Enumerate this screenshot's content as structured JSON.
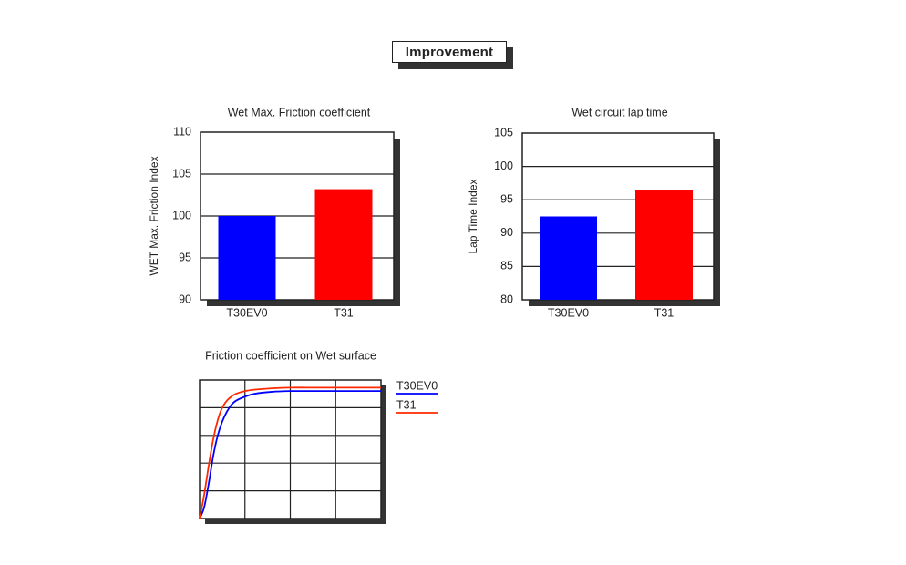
{
  "page": {
    "title": "Improvement"
  },
  "chart_data": [
    {
      "type": "bar",
      "title": "Wet Max. Friction coefficient",
      "xlabel": "",
      "ylabel": "WET Max. Friction Index",
      "categories": [
        "T30EV0",
        "T31"
      ],
      "values": [
        100,
        103.2
      ],
      "colors": [
        "#0000ff",
        "#ff0000"
      ],
      "ylim": [
        90,
        110
      ],
      "yticks": [
        90,
        95,
        100,
        105,
        110
      ],
      "grid": true
    },
    {
      "type": "bar",
      "title": "Wet circuit lap time",
      "xlabel": "",
      "ylabel": "Lap Time Index",
      "categories": [
        "T30EV0",
        "T31"
      ],
      "values": [
        92.5,
        96.5
      ],
      "colors": [
        "#0000ff",
        "#ff0000"
      ],
      "ylim": [
        80,
        105
      ],
      "yticks": [
        80,
        85,
        90,
        95,
        100,
        105
      ],
      "grid": true
    },
    {
      "type": "line",
      "title": "Friction coefficient on Wet surface",
      "xlabel": "",
      "ylabel": "",
      "x": [
        0,
        0.25,
        0.5,
        0.75,
        1,
        1.25,
        1.5,
        1.75,
        2,
        2.5,
        3,
        4,
        5,
        6,
        8,
        10
      ],
      "xlim": [
        0,
        10
      ],
      "ylim": [
        0,
        1
      ],
      "grid": true,
      "legend_position": "right",
      "series": [
        {
          "name": "T30EV0",
          "color": "#0000ff",
          "values": [
            0.0,
            0.08,
            0.25,
            0.45,
            0.6,
            0.7,
            0.77,
            0.82,
            0.85,
            0.88,
            0.9,
            0.915,
            0.92,
            0.92,
            0.92,
            0.92
          ]
        },
        {
          "name": "T31",
          "color": "#ff2a00",
          "values": [
            0.0,
            0.17,
            0.38,
            0.57,
            0.71,
            0.8,
            0.85,
            0.88,
            0.9,
            0.92,
            0.93,
            0.94,
            0.945,
            0.945,
            0.945,
            0.945
          ]
        }
      ]
    }
  ]
}
